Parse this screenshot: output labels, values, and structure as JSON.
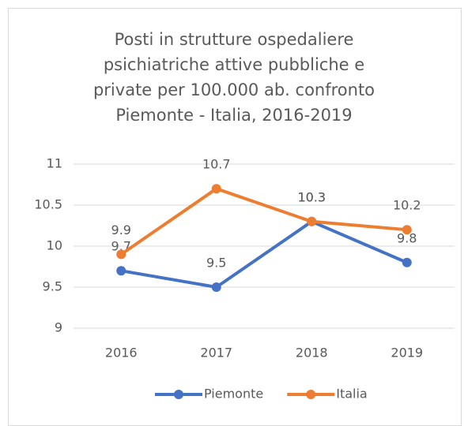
{
  "chart_data": {
    "type": "line",
    "title": "Posti in strutture ospedaliere psichiatriche attive pubbliche e private per 100.000 ab. confronto Piemonte - Italia, 2016-2019",
    "categories": [
      "2016",
      "2017",
      "2018",
      "2019"
    ],
    "series": [
      {
        "name": "Piemonte",
        "color": "#4472c4",
        "values": [
          9.7,
          9.5,
          10.3,
          9.8
        ]
      },
      {
        "name": "Italia",
        "color": "#ed7d31",
        "values": [
          9.9,
          10.7,
          10.3,
          10.2
        ]
      }
    ],
    "ylim": [
      9,
      11
    ],
    "yticks": [
      9,
      9.5,
      10,
      10.5,
      11
    ],
    "grid": true,
    "legend": "bottom"
  }
}
